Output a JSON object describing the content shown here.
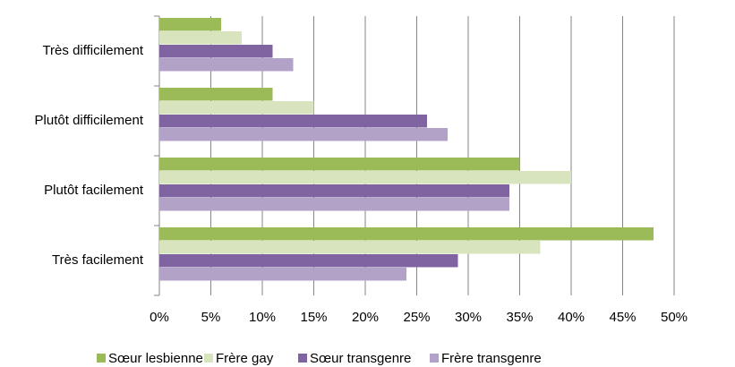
{
  "chart_data": {
    "type": "barh",
    "categories": [
      "Très difficilement",
      "Plutôt difficilement",
      "Plutôt facilement",
      "Très facilement"
    ],
    "series": [
      {
        "name": "Sœur lesbienne",
        "color": "#9bbb59",
        "values": [
          6,
          11,
          35,
          48
        ]
      },
      {
        "name": "Frère gay",
        "color": "#d7e4bd",
        "values": [
          8,
          15,
          40,
          37
        ]
      },
      {
        "name": "Sœur transgenre",
        "color": "#8064a2",
        "values": [
          11,
          26,
          34,
          29
        ]
      },
      {
        "name": "Frère transgenre",
        "color": "#b3a2c7",
        "values": [
          13,
          28,
          34,
          24
        ]
      }
    ],
    "xlim": [
      0,
      50
    ],
    "xticks": [
      {
        "value": 0,
        "label": "0%"
      },
      {
        "value": 5,
        "label": "5%"
      },
      {
        "value": 10,
        "label": "10%"
      },
      {
        "value": 15,
        "label": "15%"
      },
      {
        "value": 20,
        "label": "20%"
      },
      {
        "value": 25,
        "label": "25%"
      },
      {
        "value": 30,
        "label": "30%"
      },
      {
        "value": 35,
        "label": "35%"
      },
      {
        "value": 40,
        "label": "40%"
      },
      {
        "value": 45,
        "label": "45%"
      },
      {
        "value": 50,
        "label": "50%"
      }
    ],
    "grid": true,
    "legend": "bottom"
  }
}
